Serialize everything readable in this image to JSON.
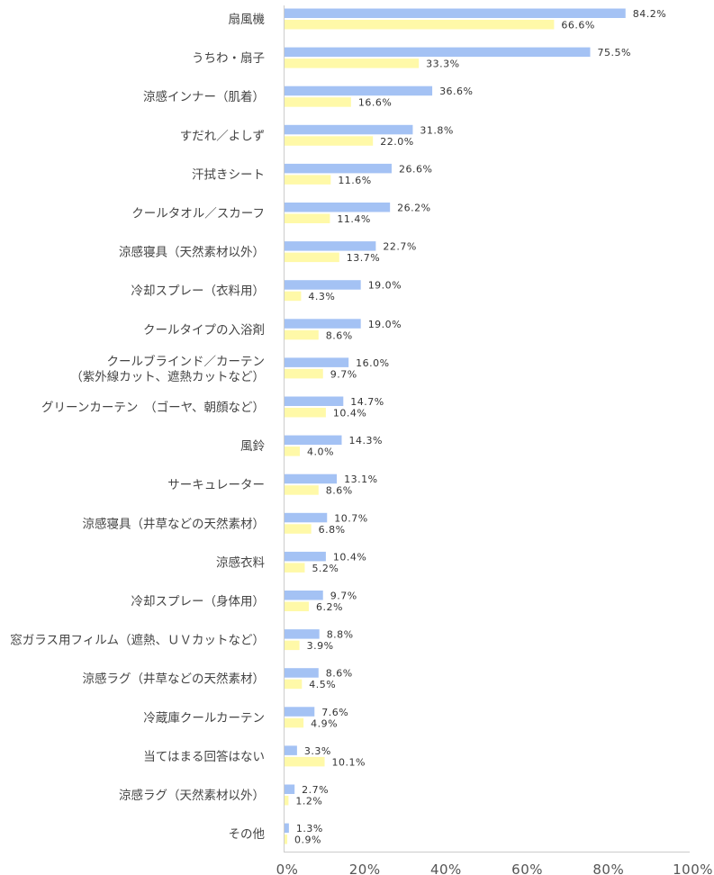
{
  "colors": {
    "series_a": "#a4c2f4",
    "series_b": "#fff9a8",
    "axis": "#cccccc"
  },
  "chart_data": {
    "type": "bar",
    "orientation": "horizontal",
    "categories": [
      [
        "扇風機"
      ],
      [
        "うちわ・扇子"
      ],
      [
        "涼感インナー（肌着）"
      ],
      [
        "すだれ／よしず"
      ],
      [
        "汗拭きシート"
      ],
      [
        "クールタオル／スカーフ"
      ],
      [
        "涼感寝具（天然素材以外）"
      ],
      [
        "冷却スプレー（衣料用）"
      ],
      [
        "クールタイプの入浴剤"
      ],
      [
        "クールブラインド／カーテン",
        "（紫外線カット、遮熱カットなど）"
      ],
      [
        "グリーンカーテン　（ゴーヤ、朝顔など）"
      ],
      [
        "風鈴"
      ],
      [
        "サーキュレーター"
      ],
      [
        "涼感寝具（井草などの天然素材）"
      ],
      [
        "涼感衣料"
      ],
      [
        "冷却スプレー（身体用）"
      ],
      [
        "窓ガラス用フィルム（遮熱、ＵＶカットなど）"
      ],
      [
        "涼感ラグ（井草などの天然素材）"
      ],
      [
        "冷蔵庫クールカーテン"
      ],
      [
        "当てはまる回答はない"
      ],
      [
        "涼感ラグ（天然素材以外）"
      ],
      [
        "その他"
      ]
    ],
    "series": [
      {
        "values": [
          84.2,
          75.5,
          36.6,
          31.8,
          26.6,
          26.2,
          22.7,
          19.0,
          19.0,
          16.0,
          14.7,
          14.3,
          13.1,
          10.7,
          10.4,
          9.7,
          8.8,
          8.6,
          7.6,
          3.3,
          2.7,
          1.3
        ],
        "labels": [
          "84.2%",
          "75.5%",
          "36.6%",
          "31.8%",
          "26.6%",
          "26.2%",
          "22.7%",
          "19.0%",
          "19.0%",
          "16.0%",
          "14.7%",
          "14.3%",
          "13.1%",
          "10.7%",
          "10.4%",
          "9.7%",
          "8.8%",
          "8.6%",
          "7.6%",
          "3.3%",
          "2.7%",
          "1.3%"
        ]
      },
      {
        "values": [
          66.6,
          33.3,
          16.6,
          22.0,
          11.6,
          11.4,
          13.7,
          4.3,
          8.6,
          9.7,
          10.4,
          4.0,
          8.6,
          6.8,
          5.2,
          6.2,
          3.9,
          4.5,
          4.9,
          10.1,
          1.2,
          0.9
        ],
        "labels": [
          "66.6%",
          "33.3%",
          "16.6%",
          "22.0%",
          "11.6%",
          "11.4%",
          "13.7%",
          "4.3%",
          "8.6%",
          "9.7%",
          "10.4%",
          "4.0%",
          "8.6%",
          "6.8%",
          "5.2%",
          "6.2%",
          "3.9%",
          "4.5%",
          "4.9%",
          "10.1%",
          "1.2%",
          "0.9%"
        ]
      }
    ],
    "xlim": [
      0,
      100
    ],
    "x_ticks": [
      "0%",
      "20%",
      "40%",
      "60%",
      "80%",
      "100%"
    ],
    "grid": false,
    "legend": "none"
  }
}
